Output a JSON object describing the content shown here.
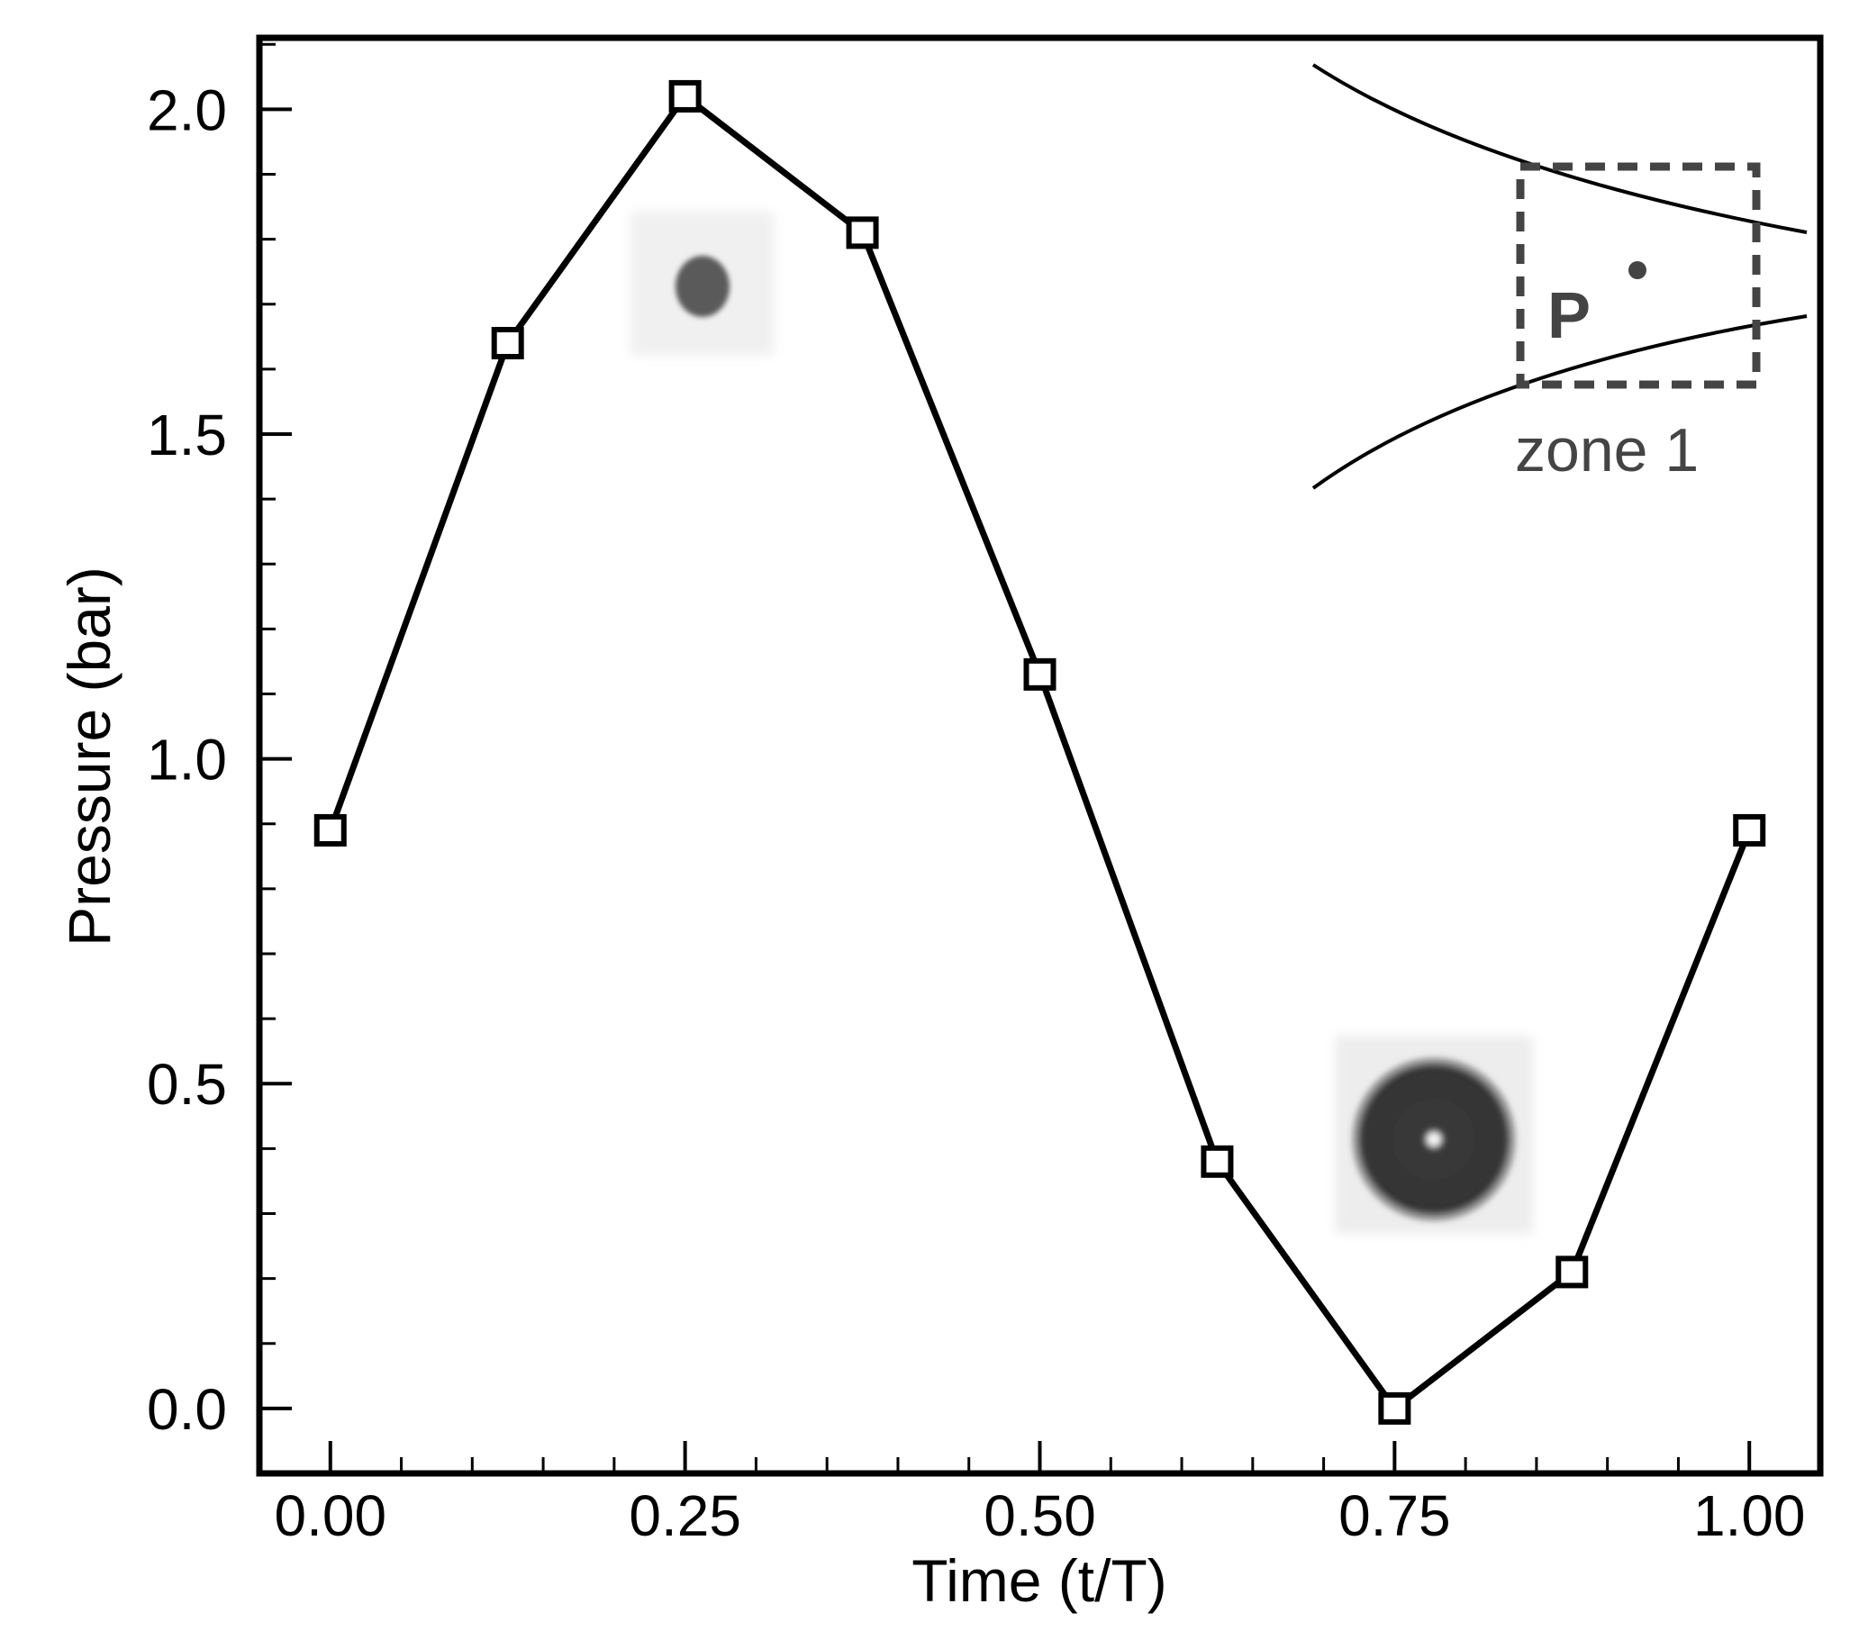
{
  "chart_data": {
    "type": "line",
    "xlabel": "Time (t/T)",
    "ylabel": "Pressure (bar)",
    "xlim": [
      -0.05,
      1.05
    ],
    "ylim": [
      -0.1,
      2.11
    ],
    "x_ticks": [
      0.0,
      0.25,
      0.5,
      0.75,
      1.0
    ],
    "x_tick_labels": [
      "0.00",
      "0.25",
      "0.50",
      "0.75",
      "1.00"
    ],
    "x_minor_step": 0.05,
    "y_ticks": [
      0.0,
      0.5,
      1.0,
      1.5,
      2.0
    ],
    "y_tick_labels": [
      "0.0",
      "0.5",
      "1.0",
      "1.5",
      "2.0"
    ],
    "y_minor_step": 0.1,
    "grid": false,
    "marker": "open-square",
    "series": [
      {
        "x": [
          0.0,
          0.125,
          0.25,
          0.375,
          0.5,
          0.625,
          0.75,
          0.875,
          1.0
        ],
        "y": [
          0.89,
          1.64,
          2.02,
          1.81,
          1.13,
          0.38,
          0.0,
          0.21,
          0.89
        ]
      }
    ],
    "inset": {
      "point_label": "P",
      "zone_label": "zone 1"
    }
  }
}
